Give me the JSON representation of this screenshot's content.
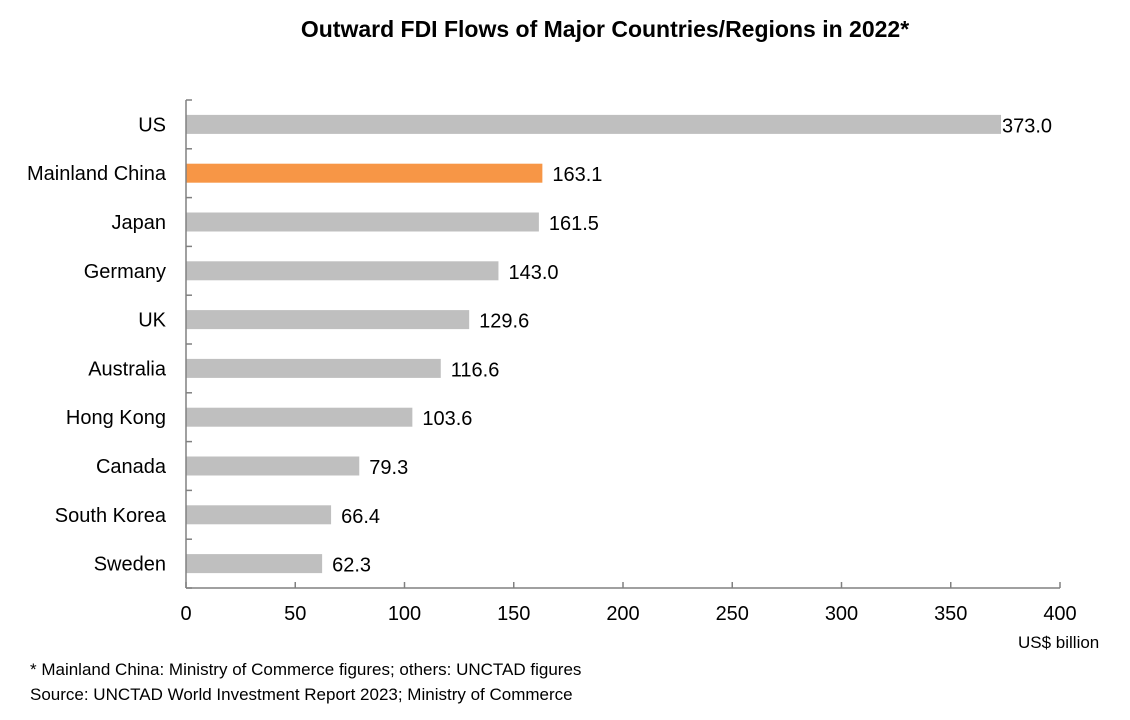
{
  "chart_data": {
    "type": "bar",
    "orientation": "horizontal",
    "title": "Outward FDI Flows of Major Countries/Regions in 2022*",
    "categories": [
      "US",
      "Mainland China",
      "Japan",
      "Germany",
      "UK",
      "Australia",
      "Hong Kong",
      "Canada",
      "South Korea",
      "Sweden"
    ],
    "values": [
      373.0,
      163.1,
      161.5,
      143.0,
      129.6,
      116.6,
      103.6,
      79.3,
      66.4,
      62.3
    ],
    "value_labels": [
      "373.0",
      "163.1",
      "161.5",
      "143.0",
      "129.6",
      "116.6",
      "103.6",
      "79.3",
      "66.4",
      "62.3"
    ],
    "highlight": "Mainland China",
    "colors": {
      "default": "#bfbfbf",
      "highlight": "#f79646",
      "axis": "#808080"
    },
    "xlim": [
      0,
      400
    ],
    "xticks": [
      0,
      50,
      100,
      150,
      200,
      250,
      300,
      350,
      400
    ],
    "xlabel": "US$ billion",
    "ylabel": "",
    "grid": false
  },
  "notes": {
    "footnote": "* Mainland China: Ministry of Commerce figures; others: UNCTAD  figures",
    "source": "Source: UNCTAD  World Investment Report 2023; Ministry of Commerce"
  }
}
